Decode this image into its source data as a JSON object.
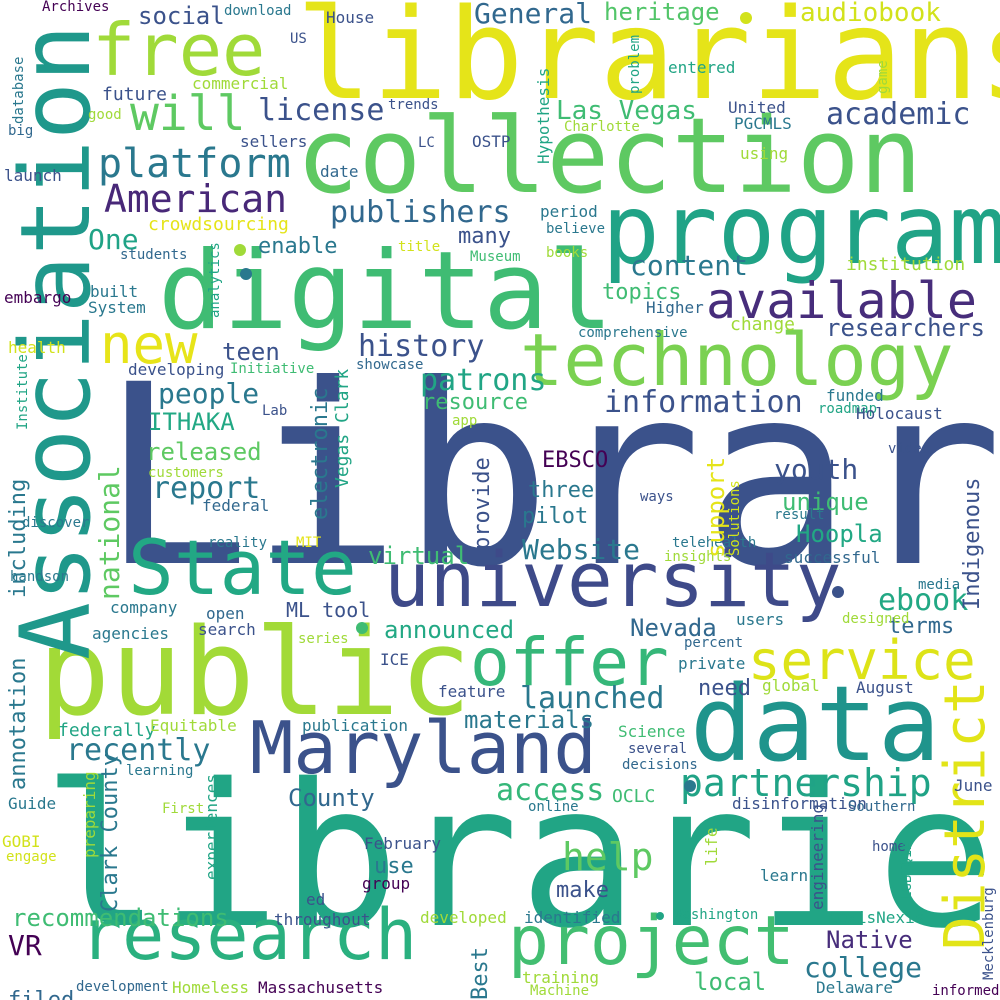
{
  "colors": {
    "background": "#ffffff",
    "palette": [
      "#440154",
      "#46327e",
      "#365c8d",
      "#277f8e",
      "#1fa187",
      "#4ac16d",
      "#a0da39",
      "#fde725"
    ]
  },
  "words": [
    {
      "text": "Library",
      "color": "#3b528b"
    },
    {
      "text": "libraries",
      "color": "#21a585"
    },
    {
      "text": "librarians",
      "color": "#e5e419"
    },
    {
      "text": "collection",
      "color": "#5ec962"
    },
    {
      "text": "program",
      "color": "#20a386"
    },
    {
      "text": "digital",
      "color": "#3fbc73"
    },
    {
      "text": "public",
      "color": "#a2da37"
    },
    {
      "text": "Association",
      "color": "#1f988b"
    },
    {
      "text": "technology",
      "color": "#7ad151"
    },
    {
      "text": "university",
      "color": "#3e4a89"
    },
    {
      "text": "data",
      "color": "#1f948c"
    },
    {
      "text": "State",
      "color": "#22a884"
    },
    {
      "text": "Maryland",
      "color": "#3b528b"
    },
    {
      "text": "free",
      "color": "#a0da39"
    },
    {
      "text": "research",
      "color": "#2ab07f"
    },
    {
      "text": "project",
      "color": "#42be71"
    },
    {
      "text": "offer",
      "color": "#35b779"
    },
    {
      "text": "service",
      "color": "#dde318"
    },
    {
      "text": "District",
      "color": "#e2e418"
    },
    {
      "text": "available",
      "color": "#472d7b"
    },
    {
      "text": "new",
      "color": "#e7e419"
    },
    {
      "text": "will",
      "color": "#5ec962"
    },
    {
      "text": "platform",
      "color": "#2a788e"
    },
    {
      "text": "American",
      "color": "#482878"
    },
    {
      "text": "publishers",
      "color": "#31688e"
    },
    {
      "text": "license",
      "color": "#3b528b"
    },
    {
      "text": "academic",
      "color": "#3b528b"
    },
    {
      "text": "General",
      "color": "#31688e"
    },
    {
      "text": "audiobook",
      "color": "#d2e21b"
    },
    {
      "text": "heritage",
      "color": "#52c569"
    },
    {
      "text": "social",
      "color": "#3b528b"
    },
    {
      "text": "Las Vegas",
      "color": "#3fbc73"
    },
    {
      "text": "content",
      "color": "#2a788e"
    },
    {
      "text": "history",
      "color": "#3b528b"
    },
    {
      "text": "patrons",
      "color": "#21a585"
    },
    {
      "text": "people",
      "color": "#2a788e"
    },
    {
      "text": "information",
      "color": "#3b528b"
    },
    {
      "text": "researchers",
      "color": "#3b528b"
    },
    {
      "text": "partnership",
      "color": "#20a386"
    },
    {
      "text": "report",
      "color": "#2a788e"
    },
    {
      "text": "help",
      "color": "#5ec962"
    },
    {
      "text": "recently",
      "color": "#2a788e"
    },
    {
      "text": "access",
      "color": "#35b779"
    },
    {
      "text": "launched",
      "color": "#2a788e"
    },
    {
      "text": "ebook",
      "color": "#22a884"
    },
    {
      "text": "Website",
      "color": "#2a788e"
    },
    {
      "text": "youth",
      "color": "#3b528b"
    },
    {
      "text": "recommendations",
      "color": "#3fbc73"
    },
    {
      "text": "college",
      "color": "#2a788e"
    },
    {
      "text": "Native",
      "color": "#472d7b"
    },
    {
      "text": "VR",
      "color": "#440154"
    },
    {
      "text": "local",
      "color": "#3fbc73"
    },
    {
      "text": "announced",
      "color": "#22a884"
    },
    {
      "text": "Nevada",
      "color": "#31688e"
    },
    {
      "text": "materials",
      "color": "#2a788e"
    },
    {
      "text": "County",
      "color": "#31688e"
    },
    {
      "text": "One",
      "color": "#20a386"
    },
    {
      "text": "enable",
      "color": "#2a788e"
    },
    {
      "text": "many",
      "color": "#3b528b"
    },
    {
      "text": "topics",
      "color": "#3fbc73"
    },
    {
      "text": "change",
      "color": "#a0da39"
    },
    {
      "text": "teen",
      "color": "#3b528b"
    },
    {
      "text": "resource",
      "color": "#3fbc73"
    },
    {
      "text": "ITHAKA",
      "color": "#22a884"
    },
    {
      "text": "released",
      "color": "#5ec962"
    },
    {
      "text": "EBSCO",
      "color": "#440154"
    },
    {
      "text": "three",
      "color": "#2a788e"
    },
    {
      "text": "pilot",
      "color": "#2a788e"
    },
    {
      "text": "unique",
      "color": "#3fbc73"
    },
    {
      "text": "Hoopla",
      "color": "#22a884"
    },
    {
      "text": "virtual",
      "color": "#3fbc73"
    },
    {
      "text": "terms",
      "color": "#31688e"
    },
    {
      "text": "use",
      "color": "#2a788e"
    },
    {
      "text": "make",
      "color": "#3b528b"
    },
    {
      "text": "filed",
      "color": "#31688e"
    },
    {
      "text": "need",
      "color": "#3b528b"
    },
    {
      "text": "future",
      "color": "#3b528b"
    },
    {
      "text": "institution",
      "color": "#a0da39"
    },
    {
      "text": "crowdsourcing",
      "color": "#e5e419"
    },
    {
      "text": "House",
      "color": "#3b528b"
    },
    {
      "text": "download",
      "color": "#2a788e"
    },
    {
      "text": "Archives",
      "color": "#440154"
    },
    {
      "text": "commercial",
      "color": "#a0da39"
    },
    {
      "text": "sellers",
      "color": "#3b528b"
    },
    {
      "text": "entered",
      "color": "#21a585"
    },
    {
      "text": "United",
      "color": "#3b528b"
    },
    {
      "text": "PGCMLS",
      "color": "#2a788e"
    },
    {
      "text": "Charlotte",
      "color": "#a0da39"
    },
    {
      "text": "OSTP",
      "color": "#3b528b"
    },
    {
      "text": "using",
      "color": "#a0da39"
    },
    {
      "text": "trends",
      "color": "#3b528b"
    },
    {
      "text": "date",
      "color": "#31688e"
    },
    {
      "text": "period",
      "color": "#2a788e"
    },
    {
      "text": "believe",
      "color": "#2a788e"
    },
    {
      "text": "books",
      "color": "#a0da39"
    },
    {
      "text": "Museum",
      "color": "#3fbc73"
    },
    {
      "text": "title",
      "color": "#d2e21b"
    },
    {
      "text": "students",
      "color": "#31688e"
    },
    {
      "text": "launch",
      "color": "#3b528b"
    },
    {
      "text": "embargo",
      "color": "#440154"
    },
    {
      "text": "built",
      "color": "#2a788e"
    },
    {
      "text": "System",
      "color": "#2a788e"
    },
    {
      "text": "Higher",
      "color": "#31688e"
    },
    {
      "text": "comprehensive",
      "color": "#2a788e"
    },
    {
      "text": "health",
      "color": "#d2e21b"
    },
    {
      "text": "developing",
      "color": "#3b528b"
    },
    {
      "text": "Initiative",
      "color": "#3fbc73"
    },
    {
      "text": "showcase",
      "color": "#31688e"
    },
    {
      "text": "Lab",
      "color": "#3b528b"
    },
    {
      "text": "funded",
      "color": "#2a788e"
    },
    {
      "text": "roadmap",
      "color": "#21a585"
    },
    {
      "text": "Holocaust",
      "color": "#3b528b"
    },
    {
      "text": "app",
      "color": "#a0da39"
    },
    {
      "text": "customers",
      "color": "#a0da39"
    },
    {
      "text": "federal",
      "color": "#31688e"
    },
    {
      "text": "ways",
      "color": "#3b528b"
    },
    {
      "text": "result",
      "color": "#2a788e"
    },
    {
      "text": "video",
      "color": "#3b528b"
    },
    {
      "text": "discover",
      "color": "#2a788e"
    },
    {
      "text": "reality",
      "color": "#2a788e"
    },
    {
      "text": "MIT",
      "color": "#e5e419"
    },
    {
      "text": "telehealth",
      "color": "#2a788e"
    },
    {
      "text": "insights",
      "color": "#a0da39"
    },
    {
      "text": "successful",
      "color": "#31688e"
    },
    {
      "text": "handson",
      "color": "#2a788e"
    },
    {
      "text": "company",
      "color": "#2a788e"
    },
    {
      "text": "ML tool",
      "color": "#3b528b"
    },
    {
      "text": "open",
      "color": "#31688e"
    },
    {
      "text": "search",
      "color": "#3b528b"
    },
    {
      "text": "users",
      "color": "#2a788e"
    },
    {
      "text": "designed",
      "color": "#a0da39"
    },
    {
      "text": "media",
      "color": "#2a788e"
    },
    {
      "text": "agencies",
      "color": "#2a788e"
    },
    {
      "text": "series",
      "color": "#a0da39"
    },
    {
      "text": "percent",
      "color": "#31688e"
    },
    {
      "text": "private",
      "color": "#2a788e"
    },
    {
      "text": "ICE",
      "color": "#3b528b"
    },
    {
      "text": "global",
      "color": "#a0da39"
    },
    {
      "text": "feature",
      "color": "#3b528b"
    },
    {
      "text": "August",
      "color": "#3b528b"
    },
    {
      "text": "federally",
      "color": "#21a585"
    },
    {
      "text": "Equitable",
      "color": "#a0da39"
    },
    {
      "text": "publication",
      "color": "#2a788e"
    },
    {
      "text": "Science",
      "color": "#3fbc73"
    },
    {
      "text": "several",
      "color": "#3b528b"
    },
    {
      "text": "decisions",
      "color": "#31688e"
    },
    {
      "text": "learning",
      "color": "#2a788e"
    },
    {
      "text": "June",
      "color": "#3b528b"
    },
    {
      "text": "disinformation",
      "color": "#3b528b"
    },
    {
      "text": "OCLC",
      "color": "#3fbc73"
    },
    {
      "text": "Southern",
      "color": "#31688e"
    },
    {
      "text": "online",
      "color": "#2a788e"
    },
    {
      "text": "Guide",
      "color": "#2a788e"
    },
    {
      "text": "First",
      "color": "#a0da39"
    },
    {
      "text": "February",
      "color": "#3b528b"
    },
    {
      "text": "group",
      "color": "#440154"
    },
    {
      "text": "home",
      "color": "#3b528b"
    },
    {
      "text": "learn",
      "color": "#2a788e"
    },
    {
      "text": "GOBI",
      "color": "#d2e21b"
    },
    {
      "text": "engage",
      "color": "#d2e21b"
    },
    {
      "text": "ed",
      "color": "#3b528b"
    },
    {
      "text": "throughout",
      "color": "#3b528b"
    },
    {
      "text": "developed",
      "color": "#a0da39"
    },
    {
      "text": "identified",
      "color": "#2a788e"
    },
    {
      "text": "Washington",
      "color": "#21a585"
    },
    {
      "text": "LexisNexis",
      "color": "#21a585"
    },
    {
      "text": "training",
      "color": "#a0da39"
    },
    {
      "text": "Machine",
      "color": "#a0da39"
    },
    {
      "text": "Delaware",
      "color": "#2a788e"
    },
    {
      "text": "informed",
      "color": "#440154"
    },
    {
      "text": "development",
      "color": "#31688e"
    },
    {
      "text": "Homeless",
      "color": "#a0da39"
    },
    {
      "text": "Massachusetts",
      "color": "#440154"
    },
    {
      "text": "US",
      "color": "#3b528b"
    },
    {
      "text": "good",
      "color": "#a0da39"
    },
    {
      "text": "big",
      "color": "#31688e"
    },
    {
      "text": "LC",
      "color": "#3b528b"
    },
    {
      "text": "database",
      "color": "#2a788e"
    },
    {
      "text": "analytics",
      "color": "#21a585"
    },
    {
      "text": "Institute",
      "color": "#21a585"
    },
    {
      "text": "Hypothesis",
      "color": "#21a585"
    },
    {
      "text": "problem",
      "color": "#21a585"
    },
    {
      "text": "game",
      "color": "#a0da39"
    },
    {
      "text": "Vegas Clark",
      "color": "#21a585"
    },
    {
      "text": "electronic",
      "color": "#2a788e"
    },
    {
      "text": "national",
      "color": "#5ec962"
    },
    {
      "text": "including",
      "color": "#2a788e"
    },
    {
      "text": "annotation",
      "color": "#2a788e"
    },
    {
      "text": "Clark County",
      "color": "#2a788e"
    },
    {
      "text": "preparing",
      "color": "#a0da39"
    },
    {
      "text": "experiences",
      "color": "#21a585"
    },
    {
      "text": "provide",
      "color": "#3b528b"
    },
    {
      "text": "support",
      "color": "#e5e419"
    },
    {
      "text": "Solutions",
      "color": "#d2e21b"
    },
    {
      "text": "Indigenous",
      "color": "#3b528b"
    },
    {
      "text": "engineering",
      "color": "#3b528b"
    },
    {
      "text": "life",
      "color": "#a0da39"
    },
    {
      "text": "LGBTQIA",
      "color": "#21a585"
    },
    {
      "text": "Mecklenburg",
      "color": "#3b528b"
    },
    {
      "text": "Best",
      "color": "#2a788e"
    }
  ]
}
